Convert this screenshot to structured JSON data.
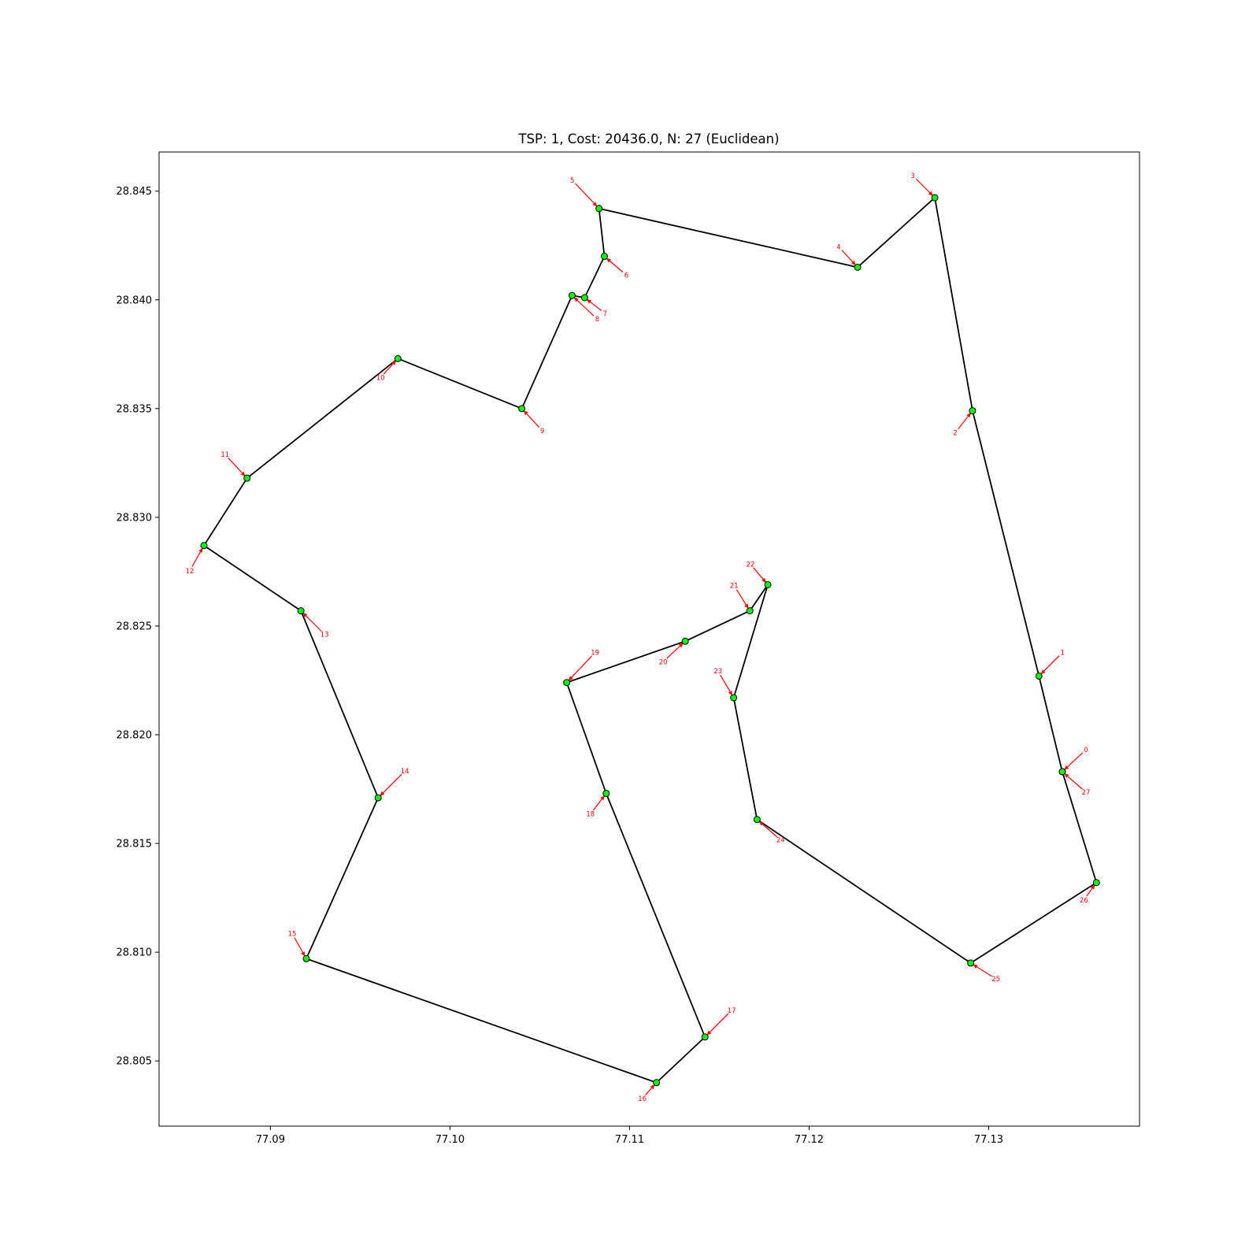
{
  "chart_data": {
    "type": "scatter",
    "title": "TSP: 1, Cost: 20436.0, N: 27 (Euclidean)",
    "xlabel": "",
    "ylabel": "",
    "xlim": [
      77.0838,
      77.1384
    ],
    "ylim": [
      28.802,
      28.8468
    ],
    "x_ticks": [
      77.09,
      77.1,
      77.11,
      77.12,
      77.13
    ],
    "x_tick_labels": [
      "77.09",
      "77.10",
      "77.11",
      "77.12",
      "77.13"
    ],
    "y_ticks": [
      28.805,
      28.81,
      28.815,
      28.82,
      28.825,
      28.83,
      28.835,
      28.84,
      28.845
    ],
    "y_tick_labels": [
      "28.805",
      "28.810",
      "28.815",
      "28.820",
      "28.825",
      "28.830",
      "28.835",
      "28.840",
      "28.845"
    ],
    "grid": false,
    "legend": "none",
    "colors": {
      "route": "#000000",
      "node_fill": "#00ff00",
      "node_edge": "#000000",
      "label": "#ff0000"
    },
    "nodes": [
      {
        "label": "0",
        "x": 77.1341,
        "y": 28.8183
      },
      {
        "label": "1",
        "x": 77.1328,
        "y": 28.8227
      },
      {
        "label": "2",
        "x": 77.1291,
        "y": 28.8349
      },
      {
        "label": "3",
        "x": 77.127,
        "y": 28.8447
      },
      {
        "label": "4",
        "x": 77.1227,
        "y": 28.8415
      },
      {
        "label": "5",
        "x": 77.1083,
        "y": 28.8442
      },
      {
        "label": "6",
        "x": 77.1086,
        "y": 28.842
      },
      {
        "label": "7",
        "x": 77.1075,
        "y": 28.8401
      },
      {
        "label": "8",
        "x": 77.1068,
        "y": 28.8402
      },
      {
        "label": "9",
        "x": 77.104,
        "y": 28.835
      },
      {
        "label": "10",
        "x": 77.0971,
        "y": 28.8373
      },
      {
        "label": "11",
        "x": 77.0887,
        "y": 28.8318
      },
      {
        "label": "12",
        "x": 77.0863,
        "y": 28.8287
      },
      {
        "label": "13",
        "x": 77.0917,
        "y": 28.8257
      },
      {
        "label": "14",
        "x": 77.096,
        "y": 28.8171
      },
      {
        "label": "15",
        "x": 77.092,
        "y": 28.8097
      },
      {
        "label": "16",
        "x": 77.1115,
        "y": 28.804
      },
      {
        "label": "17",
        "x": 77.1142,
        "y": 28.8061
      },
      {
        "label": "18",
        "x": 77.1087,
        "y": 28.8173
      },
      {
        "label": "19",
        "x": 77.1065,
        "y": 28.8224
      },
      {
        "label": "20",
        "x": 77.1131,
        "y": 28.8243
      },
      {
        "label": "21",
        "x": 77.1167,
        "y": 28.8257
      },
      {
        "label": "22",
        "x": 77.1177,
        "y": 28.8269
      },
      {
        "label": "23",
        "x": 77.1158,
        "y": 28.8217
      },
      {
        "label": "24",
        "x": 77.1171,
        "y": 28.8161
      },
      {
        "label": "25",
        "x": 77.129,
        "y": 28.8095
      },
      {
        "label": "26",
        "x": 77.136,
        "y": 28.8132
      },
      {
        "label": "27",
        "x": 77.1341,
        "y": 28.8183
      }
    ],
    "route": [
      "0",
      "1",
      "2",
      "3",
      "4",
      "5",
      "6",
      "7",
      "8",
      "9",
      "10",
      "11",
      "12",
      "13",
      "14",
      "15",
      "16",
      "17",
      "18",
      "19",
      "20",
      "21",
      "22",
      "23",
      "24",
      "25",
      "26",
      "27"
    ]
  }
}
